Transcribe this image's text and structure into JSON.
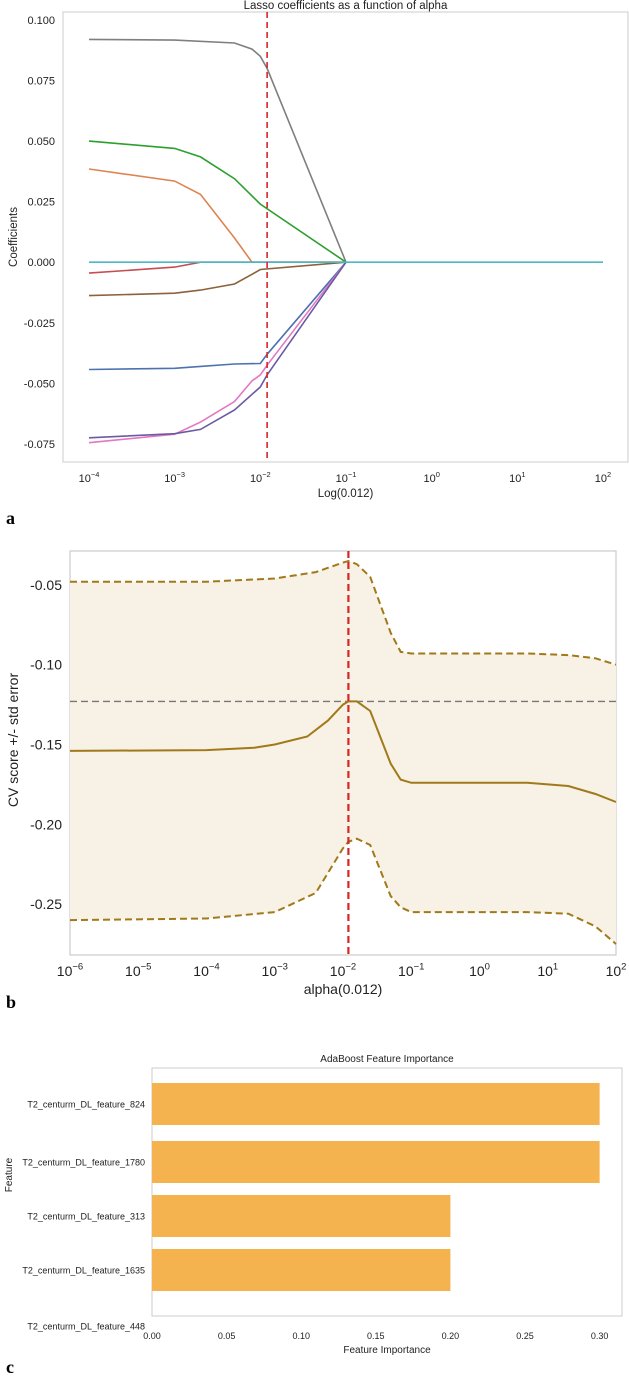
{
  "panels": [
    {
      "letter": "a"
    },
    {
      "letter": "b"
    },
    {
      "letter": "c"
    }
  ],
  "colors": {
    "selected_alpha_line": "#d62728",
    "cv_mean": "#a07a1a",
    "cv_band": "#f8f1e5",
    "bar": "#f5b350",
    "frame": "#cccccc"
  },
  "chart_data": [
    {
      "type": "line",
      "title": "Lasso coefficients as a function of alpha",
      "xlabel": "Log(0.012)",
      "ylabel": "Coefficients",
      "xscale": "log",
      "xlim": [
        0.0001,
        100
      ],
      "ylim": [
        -0.08,
        0.1
      ],
      "grid": false,
      "xticks": [
        {
          "value": 0.0001,
          "base": "10",
          "exp": "−4"
        },
        {
          "value": 0.001,
          "base": "10",
          "exp": "−3"
        },
        {
          "value": 0.01,
          "base": "10",
          "exp": "−2"
        },
        {
          "value": 0.1,
          "base": "10",
          "exp": "−1"
        },
        {
          "value": 1,
          "base": "10",
          "exp": "0"
        },
        {
          "value": 10,
          "base": "10",
          "exp": "1"
        },
        {
          "value": 100,
          "base": "10",
          "exp": "2"
        }
      ],
      "yticks": [
        {
          "value": 0.1,
          "label": "0.100"
        },
        {
          "value": 0.075,
          "label": "0.075"
        },
        {
          "value": 0.05,
          "label": "0.050"
        },
        {
          "value": 0.025,
          "label": "0.025"
        },
        {
          "value": 0.0,
          "label": "0.000"
        },
        {
          "value": -0.025,
          "label": "-0.025"
        },
        {
          "value": -0.05,
          "label": "-0.050"
        },
        {
          "value": -0.075,
          "label": "-0.075"
        }
      ],
      "vline": 0.012,
      "series": [
        {
          "color": "#7f7f7f",
          "points": [
            [
              0.0001,
              0.092
            ],
            [
              0.001,
              0.0917
            ],
            [
              0.005,
              0.0905
            ],
            [
              0.008,
              0.088
            ],
            [
              0.01,
              0.085
            ],
            [
              0.012,
              0.08
            ],
            [
              0.1,
              0.0
            ]
          ]
        },
        {
          "color": "#2ca02c",
          "points": [
            [
              0.0001,
              0.05
            ],
            [
              0.001,
              0.047
            ],
            [
              0.002,
              0.0435
            ],
            [
              0.005,
              0.0345
            ],
            [
              0.01,
              0.024
            ],
            [
              0.1,
              0.0
            ]
          ]
        },
        {
          "color": "#dd8452",
          "points": [
            [
              0.0001,
              0.0385
            ],
            [
              0.001,
              0.0335
            ],
            [
              0.002,
              0.028
            ],
            [
              0.005,
              0.01
            ],
            [
              0.008,
              0.0
            ],
            [
              0.1,
              0.0
            ]
          ]
        },
        {
          "color": "#c44e52",
          "points": [
            [
              0.0001,
              -0.0045
            ],
            [
              0.001,
              -0.002
            ],
            [
              0.002,
              0.0
            ],
            [
              0.1,
              0.0
            ]
          ]
        },
        {
          "color": "#8c613c",
          "points": [
            [
              0.0001,
              -0.0138
            ],
            [
              0.001,
              -0.0128
            ],
            [
              0.002,
              -0.0115
            ],
            [
              0.005,
              -0.009
            ],
            [
              0.008,
              -0.005
            ],
            [
              0.01,
              -0.003
            ],
            [
              0.1,
              0.0
            ]
          ]
        },
        {
          "color": "#4c72b0",
          "points": [
            [
              0.0001,
              -0.0443
            ],
            [
              0.001,
              -0.0438
            ],
            [
              0.002,
              -0.043
            ],
            [
              0.005,
              -0.042
            ],
            [
              0.01,
              -0.0418
            ],
            [
              0.012,
              -0.038
            ],
            [
              0.1,
              0.0
            ]
          ]
        },
        {
          "color": "#e377c2",
          "points": [
            [
              0.0001,
              -0.0745
            ],
            [
              0.001,
              -0.071
            ],
            [
              0.002,
              -0.066
            ],
            [
              0.005,
              -0.0575
            ],
            [
              0.008,
              -0.049
            ],
            [
              0.01,
              -0.0465
            ],
            [
              0.012,
              -0.0425
            ],
            [
              0.1,
              0.0
            ]
          ]
        },
        {
          "color": "#6a5aa3",
          "points": [
            [
              0.0001,
              -0.0725
            ],
            [
              0.001,
              -0.0708
            ],
            [
              0.002,
              -0.069
            ],
            [
              0.005,
              -0.061
            ],
            [
              0.01,
              -0.0515
            ],
            [
              0.012,
              -0.0465
            ],
            [
              0.1,
              0.0
            ]
          ]
        },
        {
          "color": "#4cb8c4",
          "points": [
            [
              0.0001,
              0.0
            ],
            [
              100,
              0.0
            ]
          ]
        }
      ]
    },
    {
      "type": "line",
      "title": "",
      "xlabel": "alpha(0.012)",
      "ylabel": "CV score +/- std error",
      "xscale": "log",
      "xlim": [
        1e-06,
        100
      ],
      "ylim": [
        -0.275,
        -0.025
      ],
      "grid": false,
      "xticks": [
        {
          "value": 1e-06,
          "base": "10",
          "exp": "−6"
        },
        {
          "value": 1e-05,
          "base": "10",
          "exp": "−5"
        },
        {
          "value": 0.0001,
          "base": "10",
          "exp": "−4"
        },
        {
          "value": 0.001,
          "base": "10",
          "exp": "−3"
        },
        {
          "value": 0.01,
          "base": "10",
          "exp": "−2"
        },
        {
          "value": 0.1,
          "base": "10",
          "exp": "−1"
        },
        {
          "value": 1,
          "base": "10",
          "exp": "0"
        },
        {
          "value": 10,
          "base": "10",
          "exp": "1"
        },
        {
          "value": 100,
          "base": "10",
          "exp": "2"
        }
      ],
      "yticks": [
        {
          "value": -0.05,
          "label": "-0.05"
        },
        {
          "value": -0.1,
          "label": "-0.10"
        },
        {
          "value": -0.15,
          "label": "-0.15"
        },
        {
          "value": -0.2,
          "label": "-0.20"
        },
        {
          "value": -0.25,
          "label": "-0.25"
        }
      ],
      "vline": 0.012,
      "hline": -0.123,
      "mean": [
        [
          1e-06,
          -0.154
        ],
        [
          0.0001,
          -0.1535
        ],
        [
          0.0005,
          -0.152
        ],
        [
          0.001,
          -0.15
        ],
        [
          0.003,
          -0.145
        ],
        [
          0.006,
          -0.135
        ],
        [
          0.01,
          -0.125
        ],
        [
          0.012,
          -0.123
        ],
        [
          0.016,
          -0.123
        ],
        [
          0.025,
          -0.129
        ],
        [
          0.05,
          -0.162
        ],
        [
          0.07,
          -0.172
        ],
        [
          0.1,
          -0.174
        ],
        [
          5,
          -0.174
        ],
        [
          20,
          -0.176
        ],
        [
          50,
          -0.181
        ],
        [
          100,
          -0.186
        ]
      ],
      "upper": [
        [
          1e-06,
          -0.048
        ],
        [
          0.0001,
          -0.048
        ],
        [
          0.001,
          -0.046
        ],
        [
          0.004,
          -0.042
        ],
        [
          0.01,
          -0.036
        ],
        [
          0.012,
          -0.035
        ],
        [
          0.016,
          -0.037
        ],
        [
          0.025,
          -0.045
        ],
        [
          0.05,
          -0.08
        ],
        [
          0.07,
          -0.092
        ],
        [
          0.1,
          -0.093
        ],
        [
          5,
          -0.093
        ],
        [
          20,
          -0.094
        ],
        [
          50,
          -0.096
        ],
        [
          100,
          -0.1
        ]
      ],
      "lower": [
        [
          1e-06,
          -0.26
        ],
        [
          0.0001,
          -0.259
        ],
        [
          0.001,
          -0.255
        ],
        [
          0.004,
          -0.243
        ],
        [
          0.01,
          -0.215
        ],
        [
          0.012,
          -0.211
        ],
        [
          0.016,
          -0.209
        ],
        [
          0.025,
          -0.213
        ],
        [
          0.05,
          -0.245
        ],
        [
          0.07,
          -0.252
        ],
        [
          0.1,
          -0.255
        ],
        [
          5,
          -0.255
        ],
        [
          20,
          -0.256
        ],
        [
          50,
          -0.264
        ],
        [
          100,
          -0.275
        ]
      ]
    },
    {
      "type": "bar",
      "orientation": "horizontal",
      "title": "AdaBoost Feature Importance",
      "xlabel": "Feature Importance",
      "ylabel": "Feature",
      "xlim": [
        0,
        0.315
      ],
      "grid": false,
      "xticks": [
        {
          "value": 0.0,
          "label": "0.00"
        },
        {
          "value": 0.05,
          "label": "0.05"
        },
        {
          "value": 0.1,
          "label": "0.10"
        },
        {
          "value": 0.15,
          "label": "0.15"
        },
        {
          "value": 0.2,
          "label": "0.20"
        },
        {
          "value": 0.25,
          "label": "0.25"
        },
        {
          "value": 0.3,
          "label": "0.30"
        }
      ],
      "categories": [
        "T2_centurm_DL_feature_824",
        "T2_centurm_DL_feature_1780",
        "T2_centurm_DL_feature_313",
        "T2_centurm_DL_feature_1635",
        "T2_centurm_DL_feature_448"
      ],
      "values": [
        0.3,
        0.3,
        0.2,
        0.2,
        0.0
      ]
    }
  ]
}
